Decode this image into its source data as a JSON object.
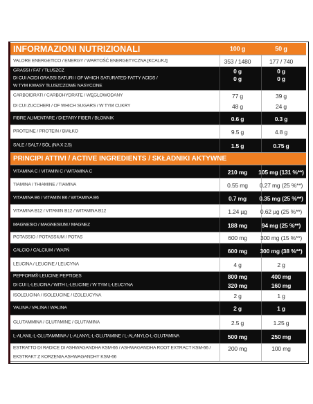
{
  "header": {
    "title": "INFORMAZIONI NUTRIZIONALI",
    "col_1": "100 g",
    "col_2": "50 g"
  },
  "nutrition_rows": [
    [
      {
        "label": "VALORE ENERGETICO / ENERGY / WARTOŚĆ ENERGETYCZNA [KCAL/KJ]",
        "per_100g": "353 / 1480",
        "per_50g": "177 / 740"
      }
    ],
    [
      {
        "label": "GRASSI / FAT / TŁUSZCZ",
        "per_100g": "0 g",
        "per_50g": "0 g"
      },
      {
        "label": "DI CUI ACIDI GRASSI SATURI / OF WHICH SATURATED FATTY ACIDS /",
        "per_100g": "0 g",
        "per_50g": "0 g"
      },
      {
        "label": "W TYM KWASY TŁUSZCZOWE NASYCONE"
      }
    ],
    [
      {
        "label": "CARBOIDRATI / CARBOHYDRATE / WĘGLOWODANY",
        "per_100g": "77 g",
        "per_50g": "39 g"
      },
      {
        "label": "DI CUI ZUCCHERI / OF WHICH SUGARS / W TYM CUKRY",
        "per_100g": "48 g",
        "per_50g": "24 g"
      }
    ],
    [
      {
        "label": "FIBRE ALIMENTARE / DIETARY FIBER / BŁONNIK",
        "per_100g": "0.6 g",
        "per_50g": "0.3 g"
      }
    ],
    [
      {
        "label": "PROTEINE / PROTEIN / BIAŁKO",
        "per_100g": "9.5 g",
        "per_50g": "4.8 g"
      }
    ],
    [
      {
        "label": "SALE / SALT / SÓL (NA X 2.5)",
        "per_100g": "1.5 g",
        "per_50g": "0.75 g"
      }
    ]
  ],
  "active_title": "PRINCIPI ATTIVI / ACTIVE INGREDIENTS / SKŁADNIKI AKTYWNE",
  "active_rows": [
    [
      {
        "label": "VITAMINA C / VITAMIN C / WITAMINA C",
        "per_100g": "210 mg",
        "per_50g": "105 mg (131 %**)"
      }
    ],
    [
      {
        "label": "TIAMINA / THIAMINE / TIAMINA",
        "per_100g": "0.55 mg",
        "per_50g": "0.27 mg (25 %**)"
      }
    ],
    [
      {
        "label": "VITAMINA B6 / VITAMIN B6 / WITAMINA B6",
        "per_100g": "0.7 mg",
        "per_50g": "0.35 mg (25 %**)"
      }
    ],
    [
      {
        "label": "VITAMINA B12 / VITAMIN B12 / WITAMINA B12",
        "per_100g": "1.24 µg",
        "per_50g": "0.62 µg (25 %**)"
      }
    ],
    [
      {
        "label": "MAGNESIO / MAGNESIUM / MAGNEZ",
        "per_100g": "188 mg",
        "per_50g": "94 mg (25 %**)"
      }
    ],
    [
      {
        "label": "POTASSIO / POTASSIUM / POTAS",
        "per_100g": "600 mg",
        "per_50g": "300 mg (15 %**)"
      }
    ],
    [
      {
        "label": "CALCIO / CALCIUM / WAPŃ",
        "per_100g": "600 mg",
        "per_50g": "300 mg (38 %**)"
      }
    ],
    [
      {
        "label": "LEUCINA / LEUCINE / LEUCYNA",
        "per_100g": "4 g",
        "per_50g": "2 g"
      }
    ],
    [
      {
        "label": "PEPFORM® LEUCINE PEPTIDES",
        "per_100g": "800 mg",
        "per_50g": "400 mg"
      },
      {
        "label": "DI CUI L-LEUCINA / WITH L-LEUCINE / W TYM L-LEUCYNA",
        "per_100g": "320 mg",
        "per_50g": "160 mg"
      }
    ],
    [
      {
        "label": "ISOLEUCINA / ISOLEUCINE / IZOLEUCYNA",
        "per_100g": "2 g",
        "per_50g": "1 g"
      }
    ],
    [
      {
        "label": "VALINA / VALINA / WALINA",
        "per_100g": "2 g",
        "per_50g": "1 g"
      }
    ],
    [
      {
        "label": "GLUTAMMINA / GLUTAMINE / GLUTAMINA",
        "per_100g": "2.5 g",
        "per_50g": "1.25 g"
      }
    ],
    [
      {
        "label": "L-ALANIL-L-GLUTAMMINA / L-ALANYL-L-GLUTAMINE / L-ALANYLO-L-GLUTAMINA",
        "per_100g": "500 mg",
        "per_50g": "250 mg"
      }
    ],
    [
      {
        "label": "ESTRATTO DI RADICE DI ASHWAGANDHA KSM-66 / ASHWAGANDHA ROOT EXTRACT KSM-66 /",
        "per_100g": "200 mg",
        "per_50g": "100 mg"
      },
      {
        "label": "EKSTRAKT Z KORZENIA ASHWAGANDHY KSM-66"
      }
    ]
  ]
}
